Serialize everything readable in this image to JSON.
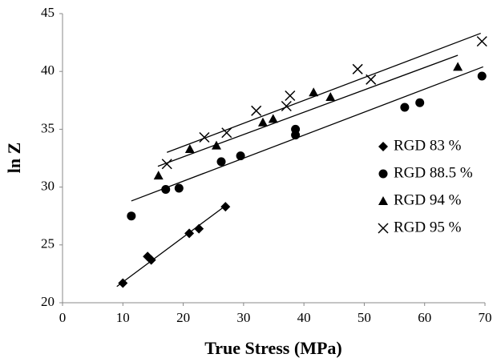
{
  "chart_data": {
    "type": "scatter",
    "x_label": "True Stress (MPa)",
    "y_label": "ln Z",
    "xlim": [
      0,
      70
    ],
    "xticks": [
      0,
      10,
      20,
      30,
      40,
      50,
      60,
      70
    ],
    "ylim": [
      20,
      45
    ],
    "yticks": [
      20,
      25,
      30,
      35,
      40,
      45
    ],
    "grid": false,
    "legend": "right",
    "series": [
      {
        "name": "RGD 83 %",
        "color": "#000000",
        "marker": "diamond",
        "x": [
          10.0,
          14.1,
          14.7,
          21.0,
          22.6,
          27.0
        ],
        "values": [
          21.7,
          24.0,
          23.7,
          26.0,
          26.4,
          28.3
        ],
        "trend": {
          "x": [
            9.0,
            27.3
          ],
          "y": [
            21.4,
            28.5
          ]
        }
      },
      {
        "name": "RGD 88.5 %",
        "color": "#000000",
        "marker": "circle",
        "x": [
          11.4,
          17.1,
          19.3,
          26.3,
          29.5,
          38.6,
          38.6,
          56.7,
          59.2,
          69.5
        ],
        "values": [
          27.5,
          29.8,
          29.9,
          32.2,
          32.7,
          35.0,
          34.5,
          36.9,
          37.3,
          39.6
        ],
        "trend": {
          "x": [
            11.4,
            69.7
          ],
          "y": [
            28.8,
            40.4
          ]
        }
      },
      {
        "name": "RGD 94 %",
        "color": "#000000",
        "marker": "triangle",
        "x": [
          15.9,
          21.1,
          25.5,
          33.2,
          34.9,
          41.6,
          44.4,
          65.5
        ],
        "values": [
          31.0,
          33.3,
          33.6,
          35.6,
          35.9,
          38.2,
          37.8,
          40.4
        ],
        "trend": {
          "x": [
            15.8,
            65.5
          ],
          "y": [
            31.8,
            41.4
          ]
        }
      },
      {
        "name": "RGD 95 %",
        "color": "#000000",
        "marker": "x",
        "x": [
          17.3,
          23.5,
          27.2,
          32.1,
          37.1,
          37.7,
          48.9,
          51.1,
          69.5
        ],
        "values": [
          32.0,
          34.3,
          34.7,
          36.6,
          37.0,
          37.9,
          40.2,
          39.3,
          42.6
        ],
        "trend": {
          "x": [
            17.3,
            69.3
          ],
          "y": [
            33.0,
            43.3
          ]
        }
      }
    ]
  }
}
